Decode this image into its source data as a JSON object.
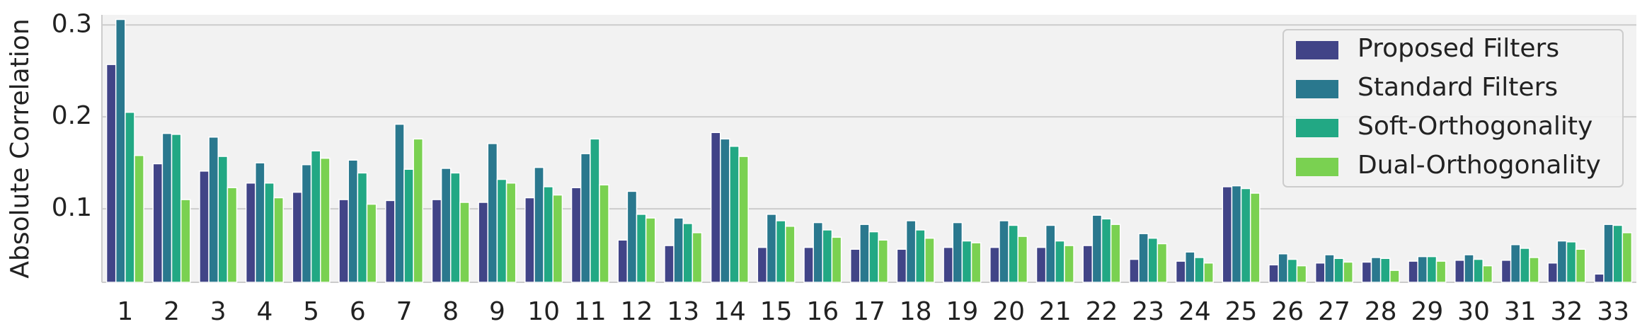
{
  "chart_data": {
    "type": "bar",
    "y_label": "Absolute Correlation",
    "categories": [
      "1",
      "2",
      "3",
      "4",
      "5",
      "6",
      "7",
      "8",
      "9",
      "10",
      "11",
      "12",
      "13",
      "14",
      "15",
      "16",
      "17",
      "18",
      "19",
      "20",
      "21",
      "22",
      "23",
      "24",
      "25",
      "26",
      "27",
      "28",
      "29",
      "30",
      "31",
      "32",
      "33"
    ],
    "series": [
      {
        "name": "Proposed Filters",
        "color": "#414487",
        "values": [
          0.257,
          0.149,
          0.141,
          0.128,
          0.118,
          0.11,
          0.109,
          0.11,
          0.107,
          0.112,
          0.123,
          0.066,
          0.06,
          0.183,
          0.058,
          0.058,
          0.056,
          0.056,
          0.058,
          0.058,
          0.058,
          0.06,
          0.045,
          0.043,
          0.124,
          0.039,
          0.041,
          0.042,
          0.043,
          0.044,
          0.044,
          0.041,
          0.029
        ]
      },
      {
        "name": "Standard Filters",
        "color": "#2a788e",
        "values": [
          0.306,
          0.182,
          0.178,
          0.15,
          0.148,
          0.153,
          0.192,
          0.144,
          0.171,
          0.145,
          0.16,
          0.119,
          0.09,
          0.176,
          0.094,
          0.085,
          0.083,
          0.087,
          0.085,
          0.087,
          0.082,
          0.093,
          0.073,
          0.053,
          0.125,
          0.051,
          0.05,
          0.047,
          0.048,
          0.05,
          0.061,
          0.065,
          0.083
        ]
      },
      {
        "name": "Soft-Orthogonality",
        "color": "#22a884",
        "values": [
          0.205,
          0.181,
          0.157,
          0.128,
          0.163,
          0.139,
          0.143,
          0.139,
          0.132,
          0.124,
          0.176,
          0.094,
          0.084,
          0.168,
          0.087,
          0.077,
          0.075,
          0.077,
          0.065,
          0.082,
          0.065,
          0.089,
          0.068,
          0.047,
          0.122,
          0.045,
          0.046,
          0.046,
          0.048,
          0.045,
          0.057,
          0.064,
          0.082
        ]
      },
      {
        "name": "Dual-Orthogonality",
        "color": "#7ad151",
        "values": [
          0.158,
          0.11,
          0.123,
          0.112,
          0.155,
          0.105,
          0.176,
          0.107,
          0.128,
          0.115,
          0.126,
          0.09,
          0.074,
          0.157,
          0.081,
          0.069,
          0.066,
          0.068,
          0.063,
          0.07,
          0.06,
          0.083,
          0.062,
          0.041,
          0.117,
          0.038,
          0.042,
          0.033,
          0.043,
          0.038,
          0.047,
          0.056,
          0.074
        ]
      }
    ],
    "ylim": [
      0.02,
      0.311
    ],
    "yticks": [
      0.1,
      0.2,
      0.3
    ],
    "grid": true,
    "legend": "upper right"
  }
}
